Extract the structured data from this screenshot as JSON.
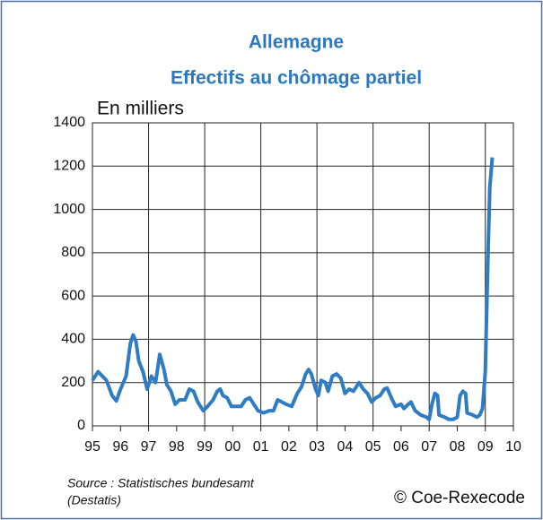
{
  "chart_data": {
    "type": "line",
    "title": "Allemagne",
    "subtitle": "Effectifs au chômage partiel",
    "ylabel": "En milliers",
    "source": [
      "Source : Statistisches bundesamt",
      "(Destatis)"
    ],
    "credit": "© Coe-Rexecode",
    "xlim": [
      1995,
      2010
    ],
    "ylim": [
      0,
      1400
    ],
    "yticks": [
      0,
      200,
      400,
      600,
      800,
      1000,
      1200,
      1400
    ],
    "xticks": [
      {
        "value": 1995,
        "label": "95"
      },
      {
        "value": 1996,
        "label": "96"
      },
      {
        "value": 1997,
        "label": "97"
      },
      {
        "value": 1998,
        "label": "98"
      },
      {
        "value": 1999,
        "label": "99"
      },
      {
        "value": 2000,
        "label": "00"
      },
      {
        "value": 2001,
        "label": "01"
      },
      {
        "value": 2002,
        "label": "02"
      },
      {
        "value": 2003,
        "label": "03"
      },
      {
        "value": 2004,
        "label": "04"
      },
      {
        "value": 2005,
        "label": "05"
      },
      {
        "value": 2006,
        "label": "06"
      },
      {
        "value": 2007,
        "label": "07"
      },
      {
        "value": 2008,
        "label": "08"
      },
      {
        "value": 2009,
        "label": "09"
      },
      {
        "value": 2010,
        "label": "10"
      }
    ],
    "grid": true,
    "x": [
      1995.0,
      1995.2,
      1995.5,
      1995.7,
      1995.85,
      1996.0,
      1996.2,
      1996.35,
      1996.45,
      1996.55,
      1996.65,
      1996.8,
      1996.95,
      1997.1,
      1997.25,
      1997.4,
      1997.55,
      1997.65,
      1997.8,
      1997.95,
      1998.1,
      1998.3,
      1998.45,
      1998.6,
      1998.75,
      1998.95,
      1999.1,
      1999.3,
      1999.45,
      1999.55,
      1999.65,
      1999.8,
      1999.95,
      2000.1,
      2000.3,
      2000.45,
      2000.6,
      2000.75,
      2000.9,
      2001.1,
      2001.3,
      2001.45,
      2001.6,
      2001.75,
      2001.9,
      2002.1,
      2002.3,
      2002.45,
      2002.6,
      2002.7,
      2002.8,
      2002.95,
      2003.05,
      2003.15,
      2003.3,
      2003.4,
      2003.55,
      2003.7,
      2003.85,
      2004.0,
      2004.15,
      2004.3,
      2004.5,
      2004.65,
      2004.8,
      2004.95,
      2005.1,
      2005.25,
      2005.4,
      2005.5,
      2005.65,
      2005.8,
      2006.0,
      2006.1,
      2006.25,
      2006.35,
      2006.5,
      2006.7,
      2006.9,
      2007.0,
      2007.1,
      2007.2,
      2007.3,
      2007.35,
      2007.55,
      2007.7,
      2007.85,
      2008.0,
      2008.1,
      2008.2,
      2008.3,
      2008.35,
      2008.55,
      2008.7,
      2008.8,
      2008.9,
      2009.0,
      2009.08,
      2009.16,
      2009.25
    ],
    "series": [
      {
        "name": "Effectifs",
        "color": "#2e7cc4",
        "values": [
          210,
          250,
          210,
          140,
          115,
          170,
          230,
          380,
          420,
          390,
          300,
          250,
          170,
          230,
          200,
          330,
          260,
          190,
          160,
          100,
          120,
          120,
          170,
          160,
          110,
          70,
          90,
          120,
          160,
          170,
          140,
          130,
          90,
          90,
          90,
          120,
          130,
          100,
          70,
          60,
          70,
          70,
          120,
          110,
          100,
          90,
          150,
          180,
          240,
          260,
          240,
          170,
          140,
          210,
          200,
          160,
          230,
          240,
          220,
          150,
          170,
          160,
          200,
          170,
          150,
          110,
          130,
          140,
          170,
          175,
          130,
          90,
          100,
          80,
          100,
          110,
          70,
          50,
          40,
          30,
          100,
          150,
          140,
          50,
          40,
          30,
          30,
          40,
          140,
          160,
          150,
          60,
          50,
          40,
          50,
          80,
          250,
          700,
          1100,
          1240
        ]
      }
    ]
  }
}
